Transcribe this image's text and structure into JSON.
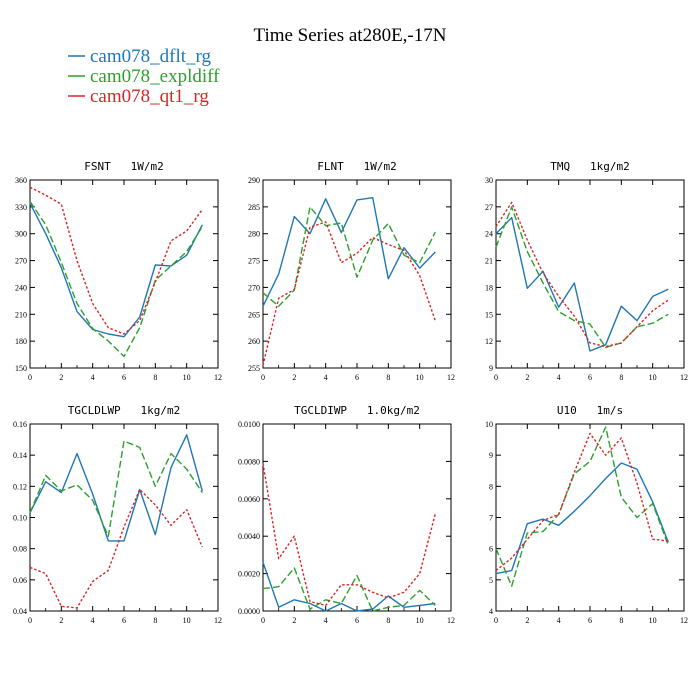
{
  "figure": {
    "title": "Time Series at280E,-17N",
    "legend": [
      {
        "label": "cam078_dflt_rg",
        "color": "#1f77b4",
        "dash": "solid"
      },
      {
        "label": "cam078_expldiff",
        "color": "#2ca02c",
        "dash": "dashed"
      },
      {
        "label": "cam078_qt1_rg",
        "color": "#d62728",
        "dash": "dotted"
      }
    ]
  },
  "chart_data": [
    {
      "type": "line",
      "title": "FSNT   1W/m2",
      "x": [
        0,
        1,
        2,
        3,
        4,
        5,
        6,
        7,
        8,
        9,
        10,
        11
      ],
      "xlim": [
        0,
        12
      ],
      "xticks": [
        0,
        2,
        4,
        6,
        8,
        10,
        12
      ],
      "ylim": [
        150,
        360
      ],
      "yticks": [
        150,
        180,
        210,
        240,
        270,
        300,
        330,
        360
      ],
      "yticklabels": [
        "150",
        "180",
        "210",
        "240",
        "270",
        "300",
        "330",
        "360"
      ],
      "series": [
        {
          "name": "cam078_dflt_rg",
          "values": [
            334,
            300,
            262,
            213,
            193,
            188,
            185,
            207,
            265,
            264,
            276,
            310
          ]
        },
        {
          "name": "cam078_expldiff",
          "values": [
            336,
            310,
            268,
            222,
            194,
            180,
            163,
            195,
            248,
            264,
            280,
            308
          ]
        },
        {
          "name": "cam078_qt1_rg",
          "values": [
            352,
            343,
            333,
            270,
            222,
            195,
            188,
            203,
            246,
            292,
            303,
            327
          ]
        }
      ]
    },
    {
      "type": "line",
      "title": "FLNT   1W/m2",
      "x": [
        0,
        1,
        2,
        3,
        4,
        5,
        6,
        7,
        8,
        9,
        10,
        11
      ],
      "xlim": [
        0,
        12
      ],
      "xticks": [
        0,
        2,
        4,
        6,
        8,
        10,
        12
      ],
      "ylim": [
        255,
        290
      ],
      "yticks": [
        255,
        260,
        265,
        270,
        275,
        280,
        285,
        290
      ],
      "yticklabels": [
        "255",
        "260",
        "265",
        "270",
        "275",
        "280",
        "285",
        "290"
      ],
      "series": [
        {
          "name": "cam078_dflt_rg",
          "values": [
            266.5,
            272.5,
            283.2,
            280,
            286.5,
            280.2,
            286.3,
            286.7,
            271.6,
            277.4,
            273.6,
            276.6
          ]
        },
        {
          "name": "cam078_expldiff",
          "values": [
            269,
            266.5,
            269.5,
            285,
            281.5,
            282,
            271.9,
            278.8,
            281.9,
            276,
            274.6,
            280.3
          ]
        },
        {
          "name": "cam078_qt1_rg",
          "values": [
            255.5,
            268,
            269.6,
            281.2,
            282.2,
            274.6,
            276.4,
            279.3,
            278,
            276.9,
            272.2,
            263.8
          ]
        }
      ]
    },
    {
      "type": "line",
      "title": "TMQ   1kg/m2",
      "x": [
        0,
        1,
        2,
        3,
        4,
        5,
        6,
        7,
        8,
        9,
        10,
        11
      ],
      "xlim": [
        0,
        12
      ],
      "xticks": [
        0,
        2,
        4,
        6,
        8,
        10,
        12
      ],
      "ylim": [
        9,
        30
      ],
      "yticks": [
        9,
        12,
        15,
        18,
        21,
        24,
        27,
        30
      ],
      "yticklabels": [
        "9",
        "12",
        "15",
        "18",
        "21",
        "24",
        "27",
        "30"
      ],
      "series": [
        {
          "name": "cam078_dflt_rg",
          "values": [
            24,
            25.8,
            17.9,
            19.8,
            15.8,
            18.5,
            10.9,
            11.6,
            15.9,
            14.3,
            17,
            17.8
          ]
        },
        {
          "name": "cam078_expldiff",
          "values": [
            22.5,
            27,
            22,
            18.5,
            15.3,
            14.3,
            13.9,
            11.3,
            11.8,
            13.6,
            14,
            15
          ]
        },
        {
          "name": "cam078_qt1_rg",
          "values": [
            24.8,
            27.5,
            23.3,
            19.6,
            17,
            14.8,
            11.8,
            11.4,
            11.8,
            13.6,
            15.4,
            16.6
          ]
        }
      ]
    },
    {
      "type": "line",
      "title": "TGCLDLWP   1kg/m2",
      "x": [
        0,
        1,
        2,
        3,
        4,
        5,
        6,
        7,
        8,
        9,
        10,
        11
      ],
      "xlim": [
        0,
        12
      ],
      "xticks": [
        0,
        2,
        4,
        6,
        8,
        10,
        12
      ],
      "ylim": [
        0.04,
        0.16
      ],
      "yticks": [
        0.04,
        0.06,
        0.08,
        0.1,
        0.12,
        0.14,
        0.16
      ],
      "yticklabels": [
        "0.04",
        "0.06",
        "0.08",
        "0.10",
        "0.12",
        "0.14",
        "0.16"
      ],
      "series": [
        {
          "name": "cam078_dflt_rg",
          "values": [
            0.103,
            0.123,
            0.116,
            0.141,
            0.115,
            0.085,
            0.085,
            0.118,
            0.089,
            0.132,
            0.153,
            0.117
          ]
        },
        {
          "name": "cam078_expldiff",
          "values": [
            0.103,
            0.127,
            0.117,
            0.121,
            0.111,
            0.088,
            0.149,
            0.145,
            0.12,
            0.141,
            0.131,
            0.116
          ]
        },
        {
          "name": "cam078_qt1_rg",
          "values": [
            0.068,
            0.064,
            0.043,
            0.042,
            0.059,
            0.066,
            0.094,
            0.118,
            0.108,
            0.095,
            0.105,
            0.081
          ]
        }
      ]
    },
    {
      "type": "line",
      "title": "TGCLDIWP   1.0kg/m2",
      "x": [
        0,
        1,
        2,
        3,
        4,
        5,
        6,
        7,
        8,
        9,
        10,
        11
      ],
      "xlim": [
        0,
        12
      ],
      "xticks": [
        0,
        2,
        4,
        6,
        8,
        10,
        12
      ],
      "ylim": [
        0,
        0.01
      ],
      "yticks": [
        0,
        0.002,
        0.004,
        0.006,
        0.008,
        0.01
      ],
      "yticklabels": [
        "0.0000",
        "0.0020",
        "0.0040",
        "0.0060",
        "0.0080",
        "0.0100"
      ],
      "series": [
        {
          "name": "cam078_dflt_rg",
          "values": [
            0.0026,
            0.0002,
            0.0006,
            0.0004,
            0.0,
            0.0004,
            0.0,
            0.0001,
            0.0008,
            0.0002,
            0.0003,
            0.0004
          ]
        },
        {
          "name": "cam078_expldiff",
          "values": [
            0.0012,
            0.0013,
            0.0023,
            0.0001,
            0.0006,
            0.0004,
            0.0019,
            0.0,
            0.0002,
            0.0003,
            0.0011,
            0.0003
          ]
        },
        {
          "name": "cam078_qt1_rg",
          "values": [
            0.0079,
            0.0028,
            0.004,
            0.0005,
            0.0003,
            0.0014,
            0.0014,
            0.001,
            0.0007,
            0.001,
            0.002,
            0.0052
          ]
        }
      ]
    },
    {
      "type": "line",
      "title": "U10   1m/s",
      "x": [
        0,
        1,
        2,
        3,
        4,
        5,
        6,
        7,
        8,
        9,
        10,
        11
      ],
      "xlim": [
        0,
        12
      ],
      "xticks": [
        0,
        2,
        4,
        6,
        8,
        10,
        12
      ],
      "ylim": [
        4,
        10
      ],
      "yticks": [
        4,
        5,
        6,
        7,
        8,
        9,
        10
      ],
      "yticklabels": [
        "4",
        "5",
        "6",
        "7",
        "8",
        "9",
        "10"
      ],
      "series": [
        {
          "name": "cam078_dflt_rg",
          "values": [
            5.2,
            5.3,
            6.8,
            6.95,
            6.75,
            7.2,
            7.7,
            8.25,
            8.75,
            8.55,
            7.5,
            6.2
          ]
        },
        {
          "name": "cam078_expldiff",
          "values": [
            6.0,
            4.8,
            6.5,
            6.55,
            7.1,
            8.4,
            8.8,
            9.9,
            7.65,
            7.0,
            7.45,
            6.1
          ]
        },
        {
          "name": "cam078_qt1_rg",
          "values": [
            5.3,
            5.7,
            6.3,
            6.9,
            7.1,
            8.45,
            9.7,
            9.0,
            9.55,
            8.1,
            6.3,
            6.25
          ]
        }
      ]
    }
  ]
}
